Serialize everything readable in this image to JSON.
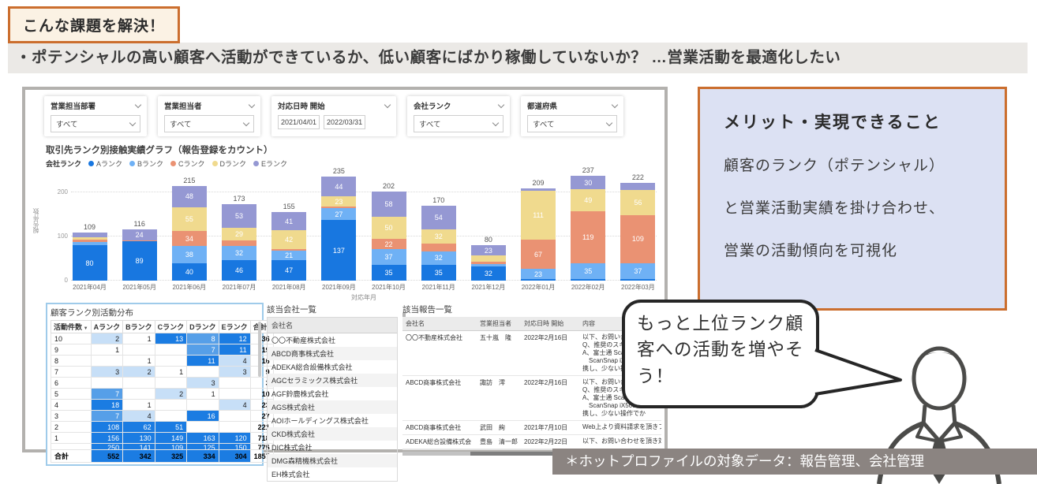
{
  "badge": {
    "label": "こんな課題を解決！"
  },
  "problem": {
    "text": "・ポテンシャルの高い顧客へ活動ができているか、低い顧客にばかり稼働していないか？ …営業活動を最適化したい"
  },
  "colors": {
    "accent_orange": "#cb6e2e",
    "badge_bg": "#fbf2e4",
    "problem_bar_bg": "#ebe9e6",
    "benefit_bg": "#dce1f3",
    "footnote_bg": "#8b8481",
    "dashboard_border": "#b3b1ae",
    "matrix_border": "#9fcbea",
    "heat_strong": "#1b7ce2",
    "heat_medium": "#569fe8",
    "heat_light": "#c7dff7"
  },
  "dashboard": {
    "filters": [
      {
        "type": "select",
        "label": "営業担当部署",
        "value": "すべて"
      },
      {
        "type": "select",
        "label": "営業担当者",
        "value": "すべて"
      },
      {
        "type": "daterange",
        "label": "対応日時 開始",
        "start": "2021/04/01",
        "end": "2022/03/31"
      },
      {
        "type": "select",
        "label": "会社ランク",
        "value": "すべて"
      },
      {
        "type": "select",
        "label": "都道府県",
        "value": "すべて"
      }
    ],
    "matrix": {
      "title": "顧客ランク別活動分布",
      "col_headers": [
        "活動件数",
        "Aランク",
        "Bランク",
        "Cランク",
        "Dランク",
        "Eランク",
        "合計"
      ],
      "rows": [
        {
          "label": "10",
          "cells": [
            "2",
            "1",
            "13",
            "8",
            "12"
          ],
          "total": "36"
        },
        {
          "label": "9",
          "cells": [
            "1",
            "",
            "",
            "7",
            "11"
          ],
          "total": "19"
        },
        {
          "label": "8",
          "cells": [
            "",
            "1",
            "",
            "11",
            "4"
          ],
          "total": "16"
        },
        {
          "label": "7",
          "cells": [
            "3",
            "2",
            "1",
            "",
            "3"
          ],
          "total": "9"
        },
        {
          "label": "6",
          "cells": [
            "",
            "",
            "",
            "3",
            ""
          ],
          "total": "3"
        },
        {
          "label": "5",
          "cells": [
            "7",
            "",
            "2",
            "1",
            ""
          ],
          "total": "10"
        },
        {
          "label": "4",
          "cells": [
            "18",
            "1",
            "",
            "",
            "4"
          ],
          "total": "23"
        },
        {
          "label": "3",
          "cells": [
            "7",
            "4",
            "",
            "16",
            ""
          ],
          "total": "27"
        },
        {
          "label": "2",
          "cells": [
            "108",
            "62",
            "51",
            "",
            ""
          ],
          "total": "221"
        },
        {
          "label": "1",
          "cells": [
            "156",
            "130",
            "149",
            "163",
            "120"
          ],
          "total": "718"
        }
      ],
      "clipped_row": {
        "label": "",
        "cells": [
          "250",
          "141",
          "109",
          "125",
          "150"
        ],
        "total": "775"
      },
      "total_row": {
        "label": "合計",
        "cells": [
          "552",
          "342",
          "325",
          "334",
          "304"
        ],
        "total": "1857"
      }
    },
    "companies": {
      "title": "該当会社一覧",
      "col_header": "会社名",
      "rows": [
        "〇〇不動産株式会社",
        "ABCD商事株式会社",
        "ADEKA総合設備株式会社",
        "AGCセラミックス株式会社",
        "AGF鈴鹿株式会社",
        "AGS株式会社",
        "AOIホールディングス株式会社",
        "CKD株式会社",
        "DIC株式会社",
        "DMG森精機株式会社",
        "EH株式会社"
      ]
    },
    "reports": {
      "title": "該当報告一覧",
      "col_headers": [
        "会社名",
        "営業担当者",
        "対応日時 開始",
        "内容"
      ],
      "rows": [
        {
          "company": "〇〇不動産株式会社",
          "person": "五十嵐　隆",
          "date": "2022年2月16日",
          "content": [
            "以下、お問い合わせを頂",
            "Q、推奨のスキャナーは",
            "A、富士通 ScanSnap iX5",
            "　ScanSnap iX500 を",
            "携し、少ない操作でか"
          ]
        },
        {
          "company": "ABCD商事株式会社",
          "person": "諏訪　澪",
          "date": "2022年2月16日",
          "content": [
            "以下、お問い合わせを頂",
            "Q、推奨のスキャナーは",
            "A、富士通 ScanSnap iX5",
            "　ScanSnap iX500 を",
            "携し、少ない操作でか"
          ]
        },
        {
          "company": "ABCD商事株式会社",
          "person": "武田　絢",
          "date": "2021年7月10日",
          "content": [
            "Web上より資料請求を頂きフォ"
          ]
        },
        {
          "company": "ADEKA総合設備株式会",
          "person": "豊島　清一郎",
          "date": "2022年2月22日",
          "content": [
            "以下、お問い合わせを頂き対応"
          ]
        }
      ]
    }
  },
  "chart_data": {
    "type": "bar",
    "stacked": true,
    "title": "取引先ランク別接触実績グラフ（報告登録をカウント）",
    "legend_title": "会社ランク",
    "legend_position": "top",
    "grid": true,
    "xlabel": "対応年月",
    "ylabel": "報告件数",
    "ylim": [
      0,
      250
    ],
    "yticks": [
      0,
      100,
      200
    ],
    "categories": [
      "2021年04月",
      "2021年05月",
      "2021年06月",
      "2021年07月",
      "2021年08月",
      "2021年09月",
      "2021年10月",
      "2021年11月",
      "2021年12月",
      "2022年01月",
      "2022年02月",
      "2022年03月"
    ],
    "series": [
      {
        "name": "Aランク",
        "color": "#1877e0",
        "values": [
          80,
          89,
          40,
          46,
          47,
          137,
          35,
          35,
          32,
          3,
          4,
          3
        ]
      },
      {
        "name": "Bランク",
        "color": "#6fb1f5",
        "values": [
          8,
          1,
          38,
          32,
          21,
          27,
          37,
          32,
          5,
          23,
          35,
          37
        ]
      },
      {
        "name": "Cランク",
        "color": "#ea9273",
        "values": [
          5,
          1,
          34,
          13,
          4,
          4,
          22,
          17,
          6,
          67,
          119,
          109
        ]
      },
      {
        "name": "Dランク",
        "color": "#f0da8e",
        "values": [
          5,
          1,
          55,
          29,
          42,
          23,
          50,
          32,
          14,
          111,
          49,
          56
        ]
      },
      {
        "name": "Eランク",
        "color": "#9598d3",
        "values": [
          11,
          24,
          48,
          53,
          41,
          44,
          58,
          54,
          23,
          5,
          30,
          17
        ]
      }
    ],
    "totals": [
      109,
      116,
      215,
      173,
      155,
      235,
      202,
      170,
      80,
      209,
      237,
      222
    ],
    "segment_label_min": 20
  },
  "benefit": {
    "title": "メリット・実現できること",
    "lines": [
      "顧客のランク（ポテンシャル）",
      "と営業活動実績を掛け合わせ、",
      "営業の活動傾向を可視化"
    ]
  },
  "bubble": {
    "text": "もっと上位ランク顧客への活動を増やそう！"
  },
  "footnote": {
    "text": "＊ホットプロファイルの対象データ：報告管理、会社管理"
  }
}
